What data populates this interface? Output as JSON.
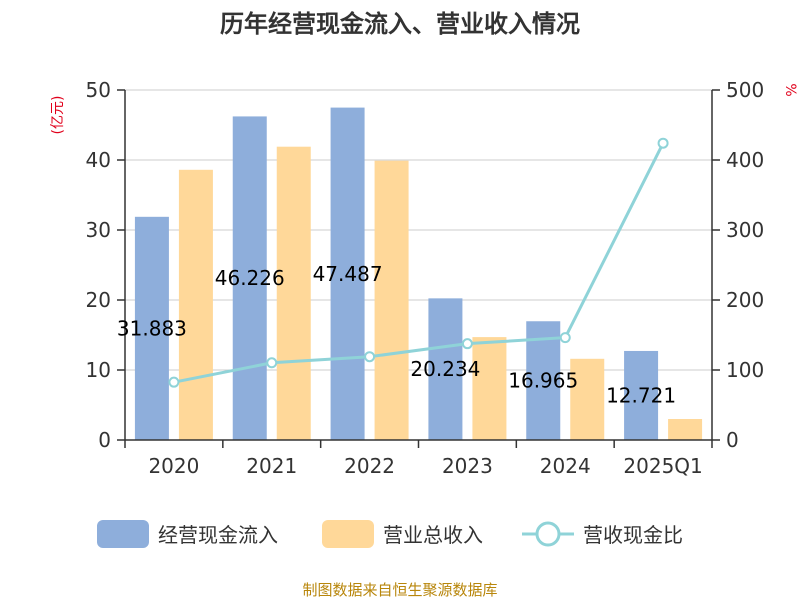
{
  "chart_data": {
    "type": "bar",
    "title": "历年经营现金流入、营业收入情况",
    "categories": [
      "2020",
      "2021",
      "2022",
      "2023",
      "2024",
      "2025Q1"
    ],
    "series": [
      {
        "name": "经营现金流入",
        "kind": "bar",
        "axis": "left",
        "color": "#8eaedb",
        "values": [
          31.883,
          46.226,
          47.487,
          20.234,
          16.965,
          12.721
        ],
        "labels": [
          "31.883",
          "46.226",
          "47.487",
          "20.234",
          "16.965",
          "12.721"
        ]
      },
      {
        "name": "营业总收入",
        "kind": "bar",
        "axis": "left",
        "color": "#ffd899",
        "values": [
          38.6,
          41.9,
          39.9,
          14.7,
          11.6,
          3.0
        ]
      },
      {
        "name": "营收现金比",
        "kind": "line",
        "axis": "right",
        "color": "#8fd3d8",
        "values": [
          82.6,
          110.3,
          119.0,
          137.6,
          146.3,
          424.0
        ]
      }
    ],
    "y_left": {
      "label": "(亿元)",
      "min": 0,
      "max": 50,
      "ticks": [
        0,
        10,
        20,
        30,
        40,
        50
      ]
    },
    "y_right": {
      "label": "%",
      "min": 0,
      "max": 500,
      "ticks": [
        0,
        100,
        200,
        300,
        400,
        500
      ]
    },
    "grid": true,
    "legend_position": "bottom"
  },
  "legend": {
    "items": [
      {
        "label": "经营现金流入",
        "icon": "bar-swatch",
        "color": "#8eaedb"
      },
      {
        "label": "营业总收入",
        "icon": "bar-swatch",
        "color": "#ffd899"
      },
      {
        "label": "营收现金比",
        "icon": "line-circle",
        "color": "#8fd3d8"
      }
    ]
  },
  "source": "制图数据来自恒生聚源数据库",
  "colors": {
    "axis_unit": "#e0001b",
    "source": "#b8860b",
    "grid": "#cccccc"
  }
}
